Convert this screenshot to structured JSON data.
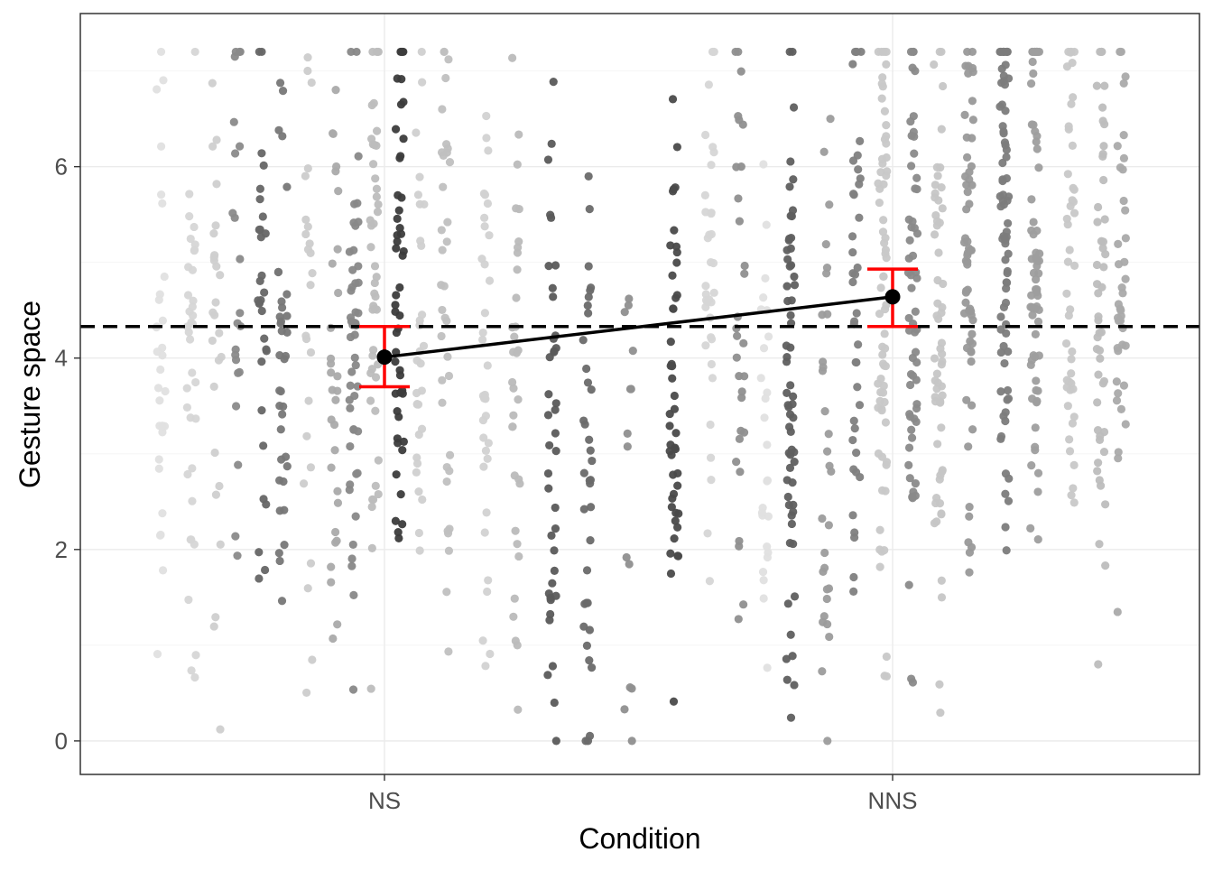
{
  "chart_data": {
    "type": "scatter",
    "title": "",
    "xlabel": "Condition",
    "ylabel": "Gesture space",
    "categories": [
      "NS",
      "NNS"
    ],
    "ylim": [
      -0.35,
      7.6
    ],
    "y_ticks": [
      0,
      2,
      4,
      6
    ],
    "grid": true,
    "legend": "none",
    "reference_line": {
      "y": 4.33,
      "style": "dashed",
      "color": "#000000"
    },
    "summary": {
      "points": [
        {
          "x": "NS",
          "y": 4.01,
          "ci": [
            3.7,
            4.33
          ]
        },
        {
          "x": "NNS",
          "y": 4.64,
          "ci": [
            4.33,
            4.93
          ]
        }
      ],
      "line_color": "#000000",
      "errorbar_color": "#ff0000"
    },
    "point_clusters": [
      {
        "x": -0.44,
        "center": 3.9,
        "count": 30,
        "shade": "#e0e0e0"
      },
      {
        "x": -0.38,
        "center": 3.6,
        "count": 36,
        "shade": "#d6d6d6"
      },
      {
        "x": -0.33,
        "center": 4.4,
        "count": 26,
        "shade": "#cfcfcf"
      },
      {
        "x": -0.29,
        "center": 4.9,
        "count": 22,
        "shade": "#8a8a8a"
      },
      {
        "x": -0.24,
        "center": 4.6,
        "count": 30,
        "shade": "#666666"
      },
      {
        "x": -0.2,
        "center": 3.8,
        "count": 36,
        "shade": "#777777"
      },
      {
        "x": -0.15,
        "center": 3.9,
        "count": 24,
        "shade": "#cccccc"
      },
      {
        "x": -0.1,
        "center": 4.2,
        "count": 30,
        "shade": "#aaaaaa"
      },
      {
        "x": -0.06,
        "center": 4.1,
        "count": 48,
        "shade": "#888888"
      },
      {
        "x": -0.02,
        "center": 4.4,
        "count": 46,
        "shade": "#bdbdbd"
      },
      {
        "x": 0.03,
        "center": 4.7,
        "count": 50,
        "shade": "#3c3c3c"
      },
      {
        "x": 0.07,
        "center": 4.4,
        "count": 30,
        "shade": "#d0d0d0"
      },
      {
        "x": 0.12,
        "center": 4.5,
        "count": 36,
        "shade": "#c0c0c0"
      },
      {
        "x": 0.2,
        "center": 3.7,
        "count": 34,
        "shade": "#d2d2d2"
      },
      {
        "x": 0.26,
        "center": 3.9,
        "count": 34,
        "shade": "#bbbbbb"
      },
      {
        "x": 0.33,
        "center": 3.2,
        "count": 40,
        "shade": "#5a5a5a"
      },
      {
        "x": 0.4,
        "center": 2.8,
        "count": 36,
        "shade": "#6a6a6a"
      },
      {
        "x": 0.48,
        "center": 3.2,
        "count": 14,
        "shade": "#8f8f8f"
      },
      {
        "x": 0.57,
        "center": 4.0,
        "count": 46,
        "shade": "#4a4a4a"
      },
      {
        "x": 0.64,
        "center": 4.7,
        "count": 36,
        "shade": "#d6d6d6"
      },
      {
        "x": 0.7,
        "center": 4.4,
        "count": 30,
        "shade": "#8f8f8f"
      },
      {
        "x": 0.75,
        "center": 4.1,
        "count": 26,
        "shade": "#e0e0e0"
      },
      {
        "x": 0.8,
        "center": 3.7,
        "count": 62,
        "shade": "#5f5f5f"
      },
      {
        "x": 0.87,
        "center": 3.4,
        "count": 30,
        "shade": "#9c9c9c"
      },
      {
        "x": 0.93,
        "center": 4.3,
        "count": 40,
        "shade": "#808080"
      },
      {
        "x": 0.98,
        "center": 4.5,
        "count": 70,
        "shade": "#c8c8c8"
      },
      {
        "x": 1.04,
        "center": 4.6,
        "count": 60,
        "shade": "#8a8a8a"
      },
      {
        "x": 1.09,
        "center": 4.5,
        "count": 60,
        "shade": "#c6c6c6"
      },
      {
        "x": 1.15,
        "center": 5.1,
        "count": 60,
        "shade": "#999999"
      },
      {
        "x": 1.22,
        "center": 5.3,
        "count": 80,
        "shade": "#7c7c7c"
      },
      {
        "x": 1.28,
        "center": 5.3,
        "count": 70,
        "shade": "#9e9e9e"
      },
      {
        "x": 1.35,
        "center": 5.0,
        "count": 46,
        "shade": "#c8c8c8"
      },
      {
        "x": 1.41,
        "center": 4.7,
        "count": 50,
        "shade": "#bdbdbd"
      },
      {
        "x": 1.45,
        "center": 5.0,
        "count": 40,
        "shade": "#aaaaaa"
      }
    ]
  }
}
